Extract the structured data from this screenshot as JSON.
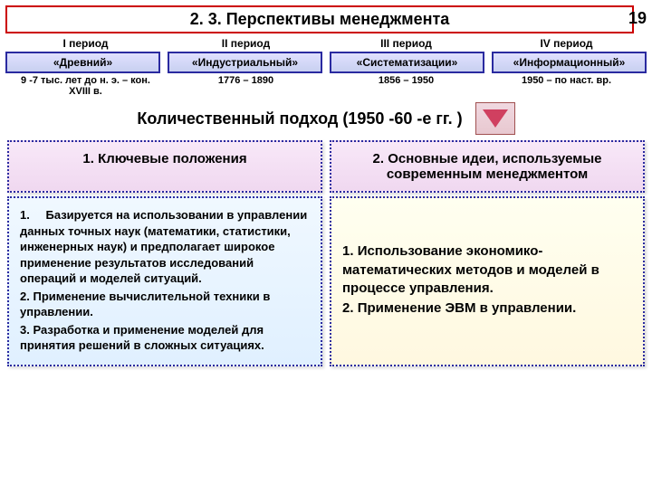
{
  "pageNumber": "19",
  "title": "2. 3. Перспективы менеджмента",
  "periods": {
    "labels": [
      "I период",
      "II период",
      "III период",
      "IV период"
    ],
    "boxes": [
      "«Древний»",
      "«Индустриальный»",
      "«Систематизации»",
      "«Информационный»"
    ],
    "dates": [
      "9 -7 тыс. лет до н. э. – кон. XVIII в.",
      "1776 – 1890",
      "1856 – 1950",
      "1950 – по наст. вр."
    ]
  },
  "subtitle": "Количественный подход (1950 -60 -е гг. )",
  "columns": {
    "left": {
      "header": "1. Ключевые положения",
      "items": [
        {
          "num": "1.",
          "text": "Базируется на использовании в управлении данных точных наук (математики, статистики, инженерных наук) и предполагает широкое применение результатов исследований операций и моделей ситуаций."
        },
        {
          "num": "2.",
          "text": "Применение вычислительной техники в управлении."
        },
        {
          "num": "3.",
          "text": "Разработка и применение моделей для принятия решений в сложных ситуациях."
        }
      ]
    },
    "right": {
      "header": "2. Основные идеи, используемые современным менеджментом",
      "items": [
        {
          "num": "1.",
          "text": "Использование экономико-математических методов и моделей в процессе управления."
        },
        {
          "num": "2.",
          "text": "Применение ЭВМ в управлении."
        }
      ]
    }
  }
}
